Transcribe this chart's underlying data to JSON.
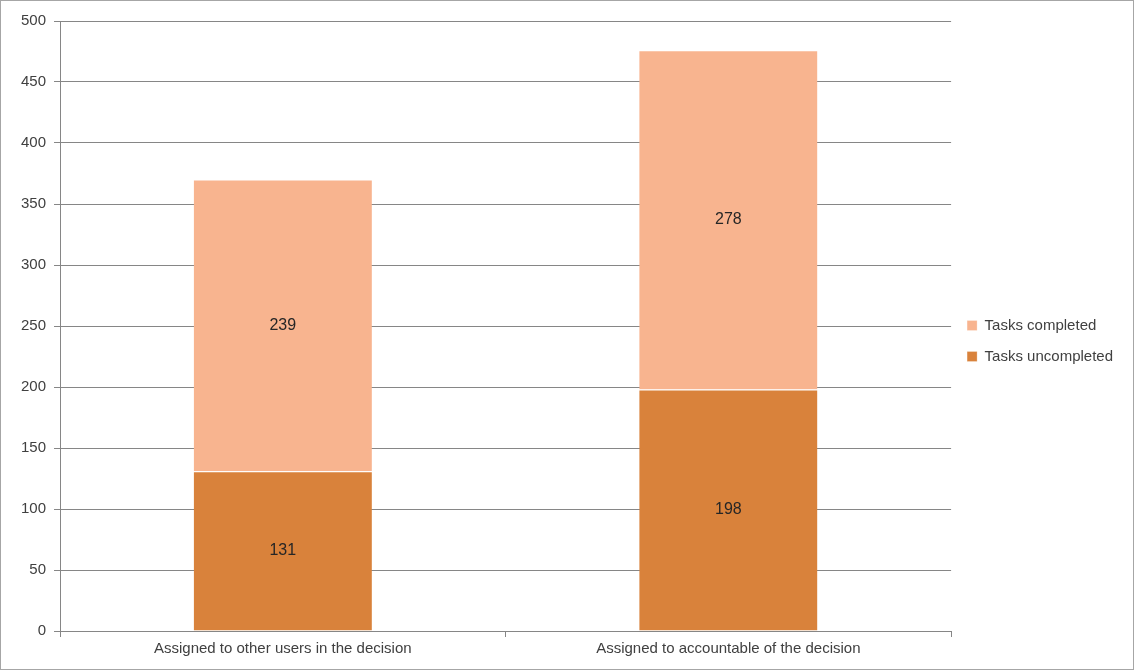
{
  "chart_data": {
    "type": "bar",
    "stacked": true,
    "categories": [
      "Assigned to other users in the decision",
      "Assigned to accountable of the decision"
    ],
    "series": [
      {
        "name": "Tasks uncompleted",
        "color": "#d9823b",
        "values": [
          131,
          198
        ]
      },
      {
        "name": "Tasks completed",
        "color": "#f8b48f",
        "values": [
          239,
          278
        ]
      }
    ],
    "ylim": [
      0,
      500
    ],
    "yticks": [
      0,
      50,
      100,
      150,
      200,
      250,
      300,
      350,
      400,
      450,
      500
    ],
    "grid": "y",
    "legend": "right",
    "data_labels": true
  }
}
